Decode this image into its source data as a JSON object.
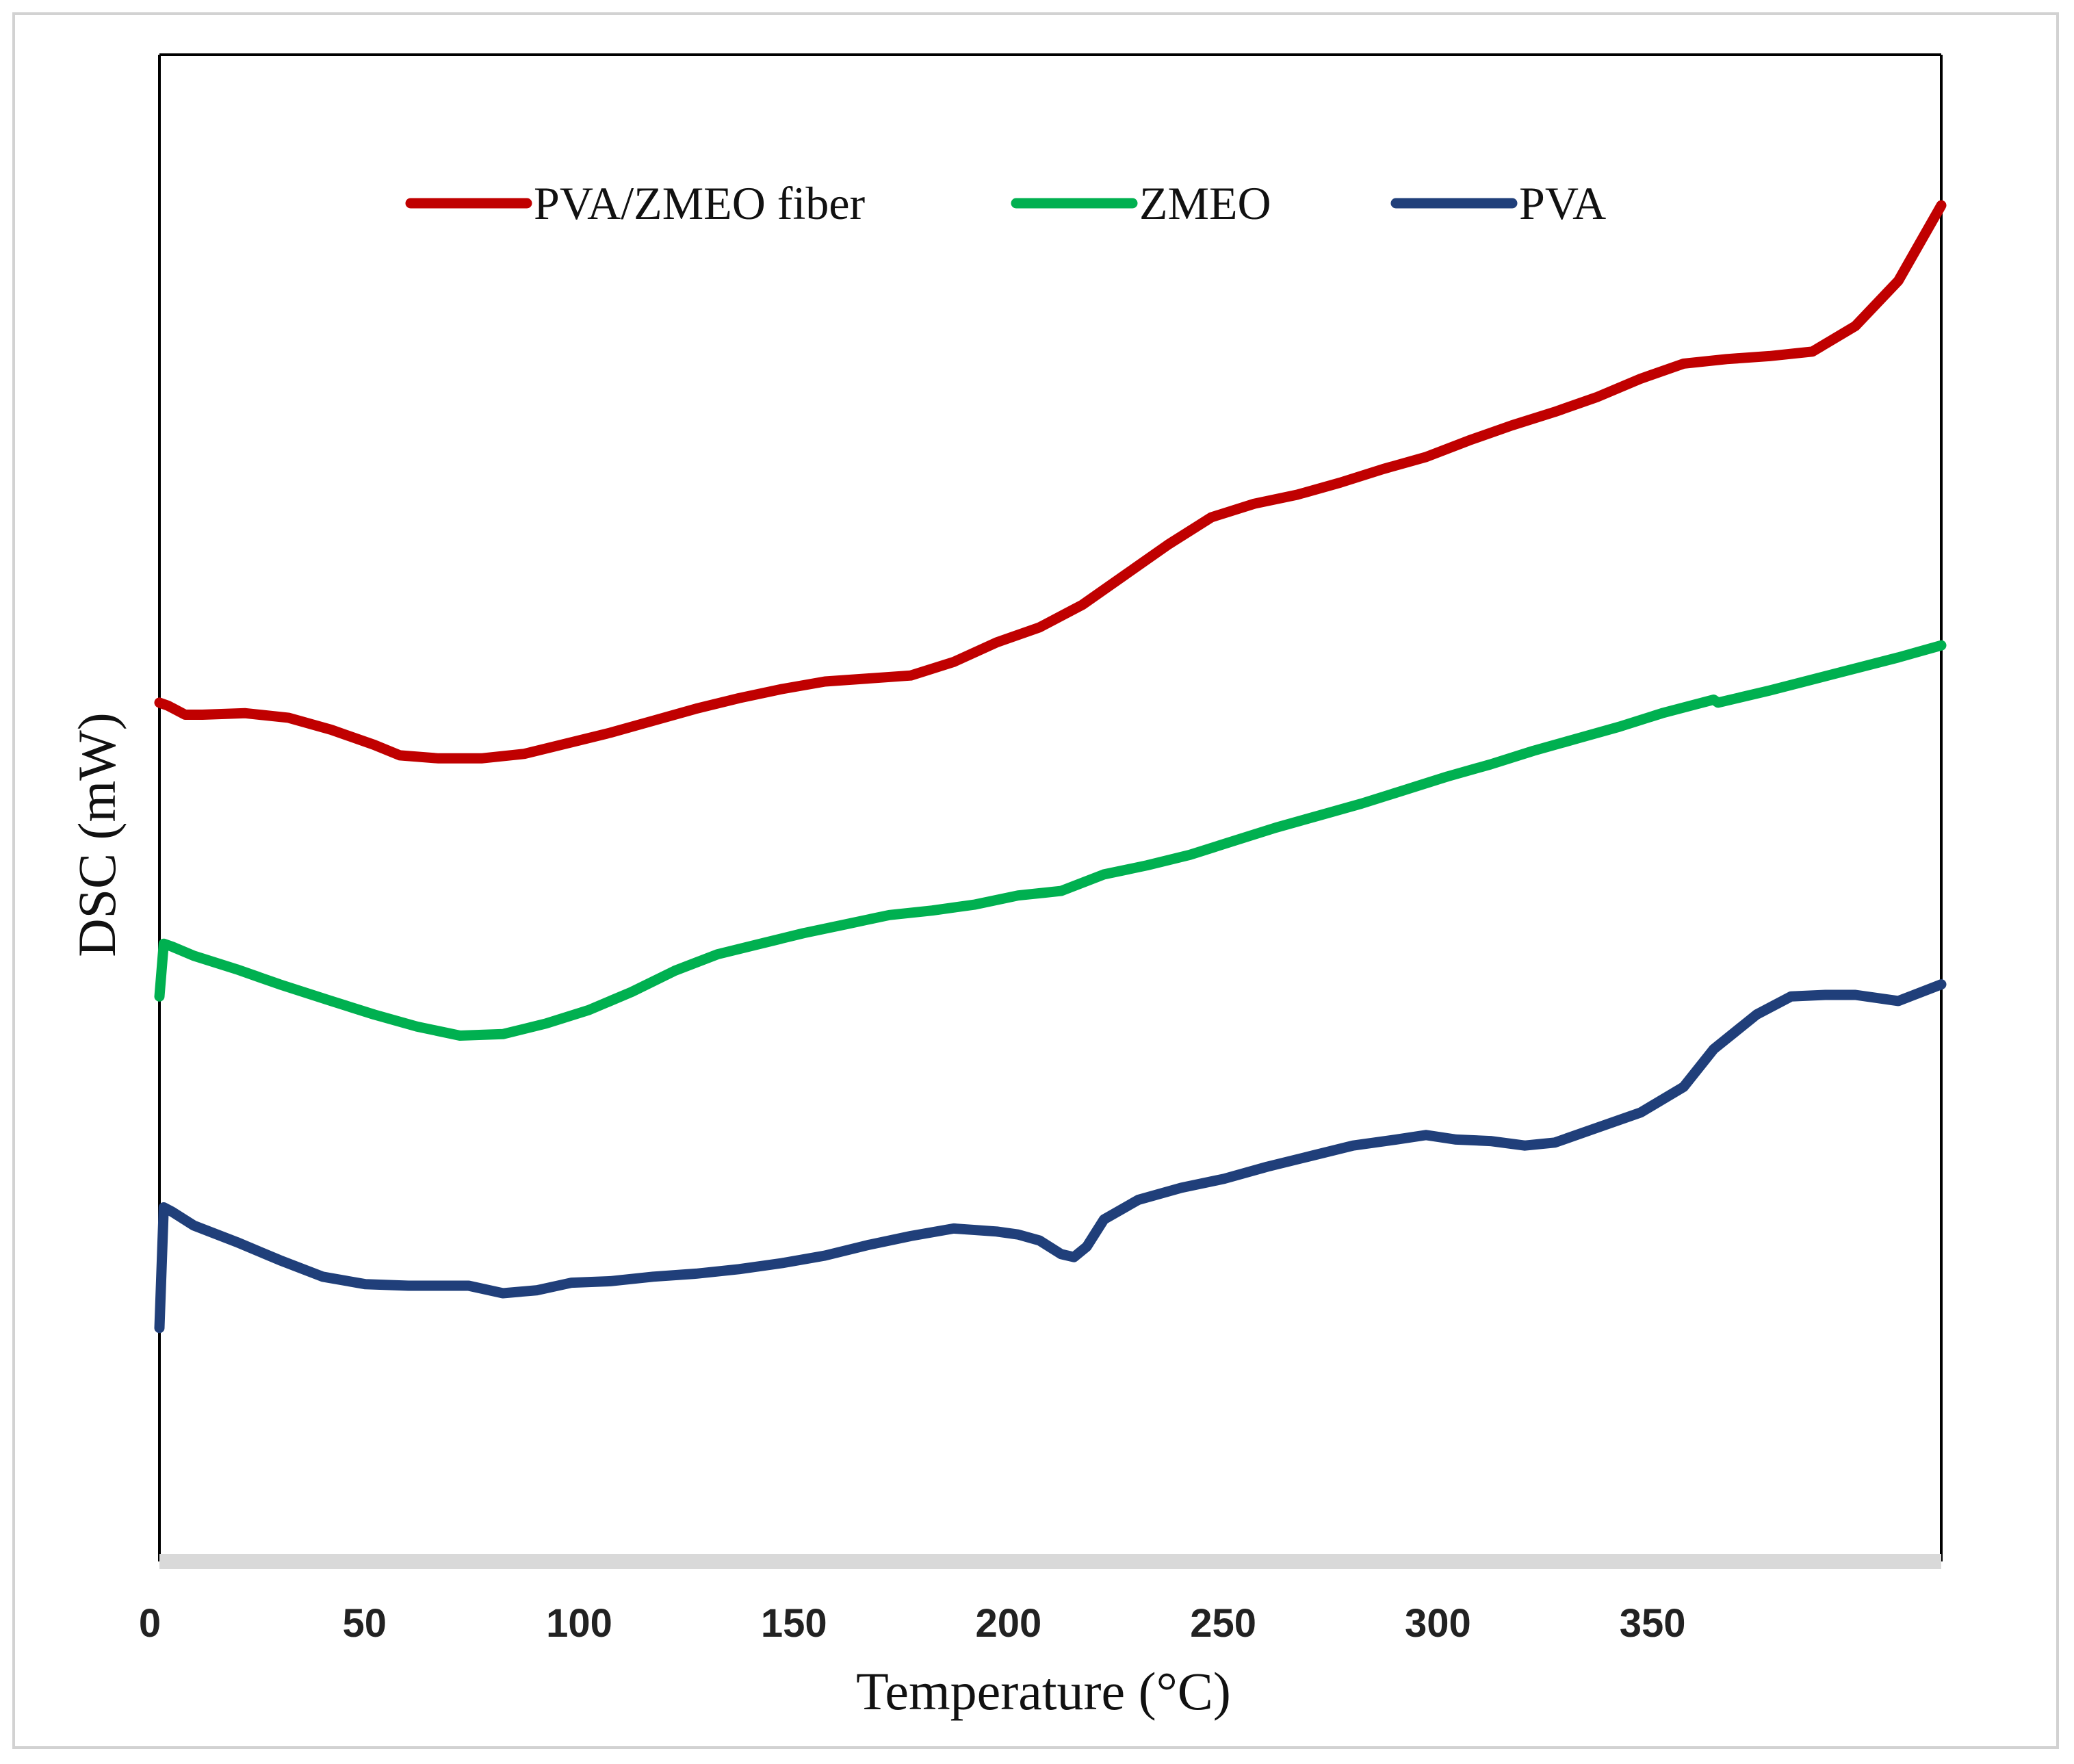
{
  "chart_data": {
    "type": "line",
    "title": "",
    "xlabel": "Temperature (°C)",
    "ylabel": "DSC (mW)",
    "xlim": [
      0,
      415
    ],
    "ylim": [
      0,
      100
    ],
    "x_ticks": [
      0,
      50,
      100,
      150,
      200,
      250,
      300,
      350
    ],
    "y_ticks_shown": false,
    "grid": false,
    "legend_position": "top",
    "series": [
      {
        "name": "PVA/ZMEO fiber",
        "color": "#c00000",
        "points": [
          [
            0,
            57
          ],
          [
            2,
            56.8
          ],
          [
            6,
            56.2
          ],
          [
            10,
            56.2
          ],
          [
            20,
            56.3
          ],
          [
            30,
            56.0
          ],
          [
            40,
            55.2
          ],
          [
            50,
            54.2
          ],
          [
            56,
            53.5
          ],
          [
            65,
            53.3
          ],
          [
            75,
            53.3
          ],
          [
            85,
            53.6
          ],
          [
            95,
            54.3
          ],
          [
            105,
            55.0
          ],
          [
            115,
            55.8
          ],
          [
            125,
            56.6
          ],
          [
            135,
            57.3
          ],
          [
            145,
            57.9
          ],
          [
            155,
            58.4
          ],
          [
            165,
            58.6
          ],
          [
            175,
            58.8
          ],
          [
            185,
            59.7
          ],
          [
            195,
            61.0
          ],
          [
            205,
            62.0
          ],
          [
            215,
            63.5
          ],
          [
            225,
            65.5
          ],
          [
            235,
            67.5
          ],
          [
            245,
            69.3
          ],
          [
            255,
            70.2
          ],
          [
            265,
            70.8
          ],
          [
            275,
            71.6
          ],
          [
            285,
            72.5
          ],
          [
            295,
            73.3
          ],
          [
            305,
            74.4
          ],
          [
            315,
            75.4
          ],
          [
            325,
            76.3
          ],
          [
            335,
            77.3
          ],
          [
            345,
            78.5
          ],
          [
            355,
            79.5
          ],
          [
            365,
            79.8
          ],
          [
            375,
            80.0
          ],
          [
            385,
            80.3
          ],
          [
            395,
            82.0
          ],
          [
            405,
            85.0
          ],
          [
            415,
            90.0
          ]
        ]
      },
      {
        "name": "ZMEO",
        "color": "#00b050",
        "points": [
          [
            0,
            37.5
          ],
          [
            1,
            41.0
          ],
          [
            3,
            40.8
          ],
          [
            8,
            40.2
          ],
          [
            18,
            39.3
          ],
          [
            28,
            38.3
          ],
          [
            40,
            37.2
          ],
          [
            50,
            36.3
          ],
          [
            60,
            35.5
          ],
          [
            70,
            34.9
          ],
          [
            80,
            35.0
          ],
          [
            90,
            35.7
          ],
          [
            100,
            36.6
          ],
          [
            110,
            37.8
          ],
          [
            120,
            39.2
          ],
          [
            130,
            40.3
          ],
          [
            140,
            41.0
          ],
          [
            150,
            41.7
          ],
          [
            160,
            42.3
          ],
          [
            170,
            42.9
          ],
          [
            180,
            43.2
          ],
          [
            190,
            43.6
          ],
          [
            200,
            44.2
          ],
          [
            210,
            44.5
          ],
          [
            220,
            45.6
          ],
          [
            230,
            46.2
          ],
          [
            240,
            46.9
          ],
          [
            250,
            47.8
          ],
          [
            260,
            48.7
          ],
          [
            270,
            49.5
          ],
          [
            280,
            50.3
          ],
          [
            290,
            51.2
          ],
          [
            300,
            52.1
          ],
          [
            310,
            52.9
          ],
          [
            320,
            53.8
          ],
          [
            330,
            54.6
          ],
          [
            340,
            55.4
          ],
          [
            350,
            56.3
          ],
          [
            362,
            57.2
          ],
          [
            363,
            57.0
          ],
          [
            375,
            57.8
          ],
          [
            390,
            58.9
          ],
          [
            405,
            60.0
          ],
          [
            415,
            60.8
          ]
        ]
      },
      {
        "name": "PVA",
        "color": "#203f7a",
        "points": [
          [
            0,
            15.5
          ],
          [
            1,
            23.5
          ],
          [
            3,
            23.2
          ],
          [
            8,
            22.3
          ],
          [
            18,
            21.2
          ],
          [
            28,
            20.0
          ],
          [
            38,
            18.9
          ],
          [
            48,
            18.4
          ],
          [
            58,
            18.3
          ],
          [
            65,
            18.3
          ],
          [
            72,
            18.3
          ],
          [
            80,
            17.8
          ],
          [
            88,
            18.0
          ],
          [
            96,
            18.5
          ],
          [
            105,
            18.6
          ],
          [
            115,
            18.9
          ],
          [
            125,
            19.1
          ],
          [
            135,
            19.4
          ],
          [
            145,
            19.8
          ],
          [
            155,
            20.3
          ],
          [
            165,
            21.0
          ],
          [
            175,
            21.6
          ],
          [
            185,
            22.1
          ],
          [
            195,
            21.9
          ],
          [
            200,
            21.7
          ],
          [
            205,
            21.3
          ],
          [
            210,
            20.4
          ],
          [
            213,
            20.2
          ],
          [
            216,
            20.9
          ],
          [
            220,
            22.7
          ],
          [
            228,
            24.0
          ],
          [
            238,
            24.8
          ],
          [
            248,
            25.4
          ],
          [
            258,
            26.2
          ],
          [
            268,
            26.9
          ],
          [
            278,
            27.6
          ],
          [
            288,
            28.0
          ],
          [
            295,
            28.3
          ],
          [
            302,
            28.0
          ],
          [
            310,
            27.9
          ],
          [
            318,
            27.6
          ],
          [
            325,
            27.8
          ],
          [
            335,
            28.8
          ],
          [
            345,
            29.8
          ],
          [
            355,
            31.5
          ],
          [
            362,
            34.0
          ],
          [
            372,
            36.3
          ],
          [
            380,
            37.5
          ],
          [
            388,
            37.6
          ],
          [
            395,
            37.6
          ],
          [
            405,
            37.2
          ],
          [
            415,
            38.3
          ]
        ]
      }
    ]
  }
}
